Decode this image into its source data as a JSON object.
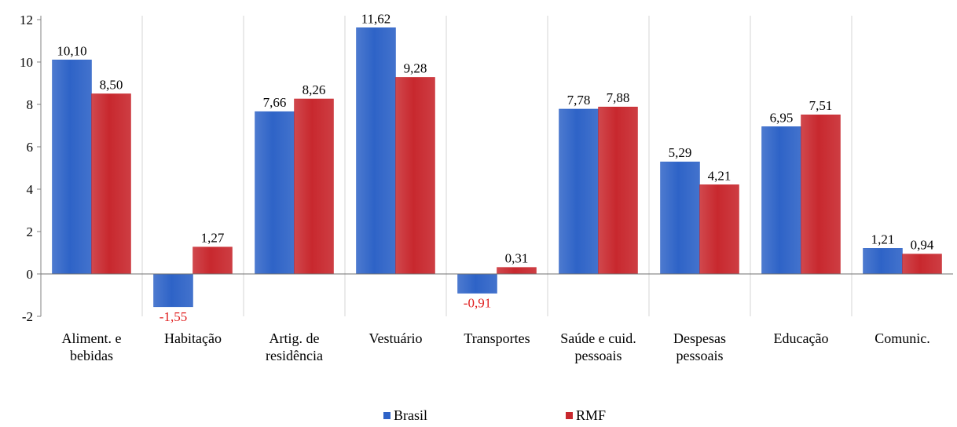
{
  "chart_data": {
    "type": "bar",
    "categories": [
      [
        "Aliment. e",
        "bebidas"
      ],
      [
        "Habitação"
      ],
      [
        "Artig. de",
        "residência"
      ],
      [
        "Vestuário"
      ],
      [
        "Transportes"
      ],
      [
        "Saúde e cuid.",
        "pessoais"
      ],
      [
        "Despesas",
        "pessoais"
      ],
      [
        "Educação"
      ],
      [
        "Comunic."
      ]
    ],
    "series": [
      {
        "name": "Brasil",
        "color": "#2e63c7",
        "values": [
          10.1,
          -1.55,
          7.66,
          11.62,
          -0.91,
          7.78,
          5.29,
          6.95,
          1.21
        ],
        "labels": [
          "10,10",
          "-1,55",
          "7,66",
          "11,62",
          "-0,91",
          "7,78",
          "5,29",
          "6,95",
          "1,21"
        ]
      },
      {
        "name": "RMF",
        "color": "#c8282e",
        "values": [
          8.5,
          1.27,
          8.26,
          9.28,
          0.31,
          7.88,
          4.21,
          7.51,
          0.94
        ],
        "labels": [
          "8,50",
          "1,27",
          "8,26",
          "9,28",
          "0,31",
          "7,88",
          "4,21",
          "7,51",
          "0,94"
        ]
      }
    ],
    "ylim": [
      -2,
      12
    ],
    "yticks": [
      -2,
      0,
      2,
      4,
      6,
      8,
      10,
      12
    ],
    "negative_label_color": "#e02020",
    "grid": "vertical category separators",
    "legend": "bottom-center"
  }
}
